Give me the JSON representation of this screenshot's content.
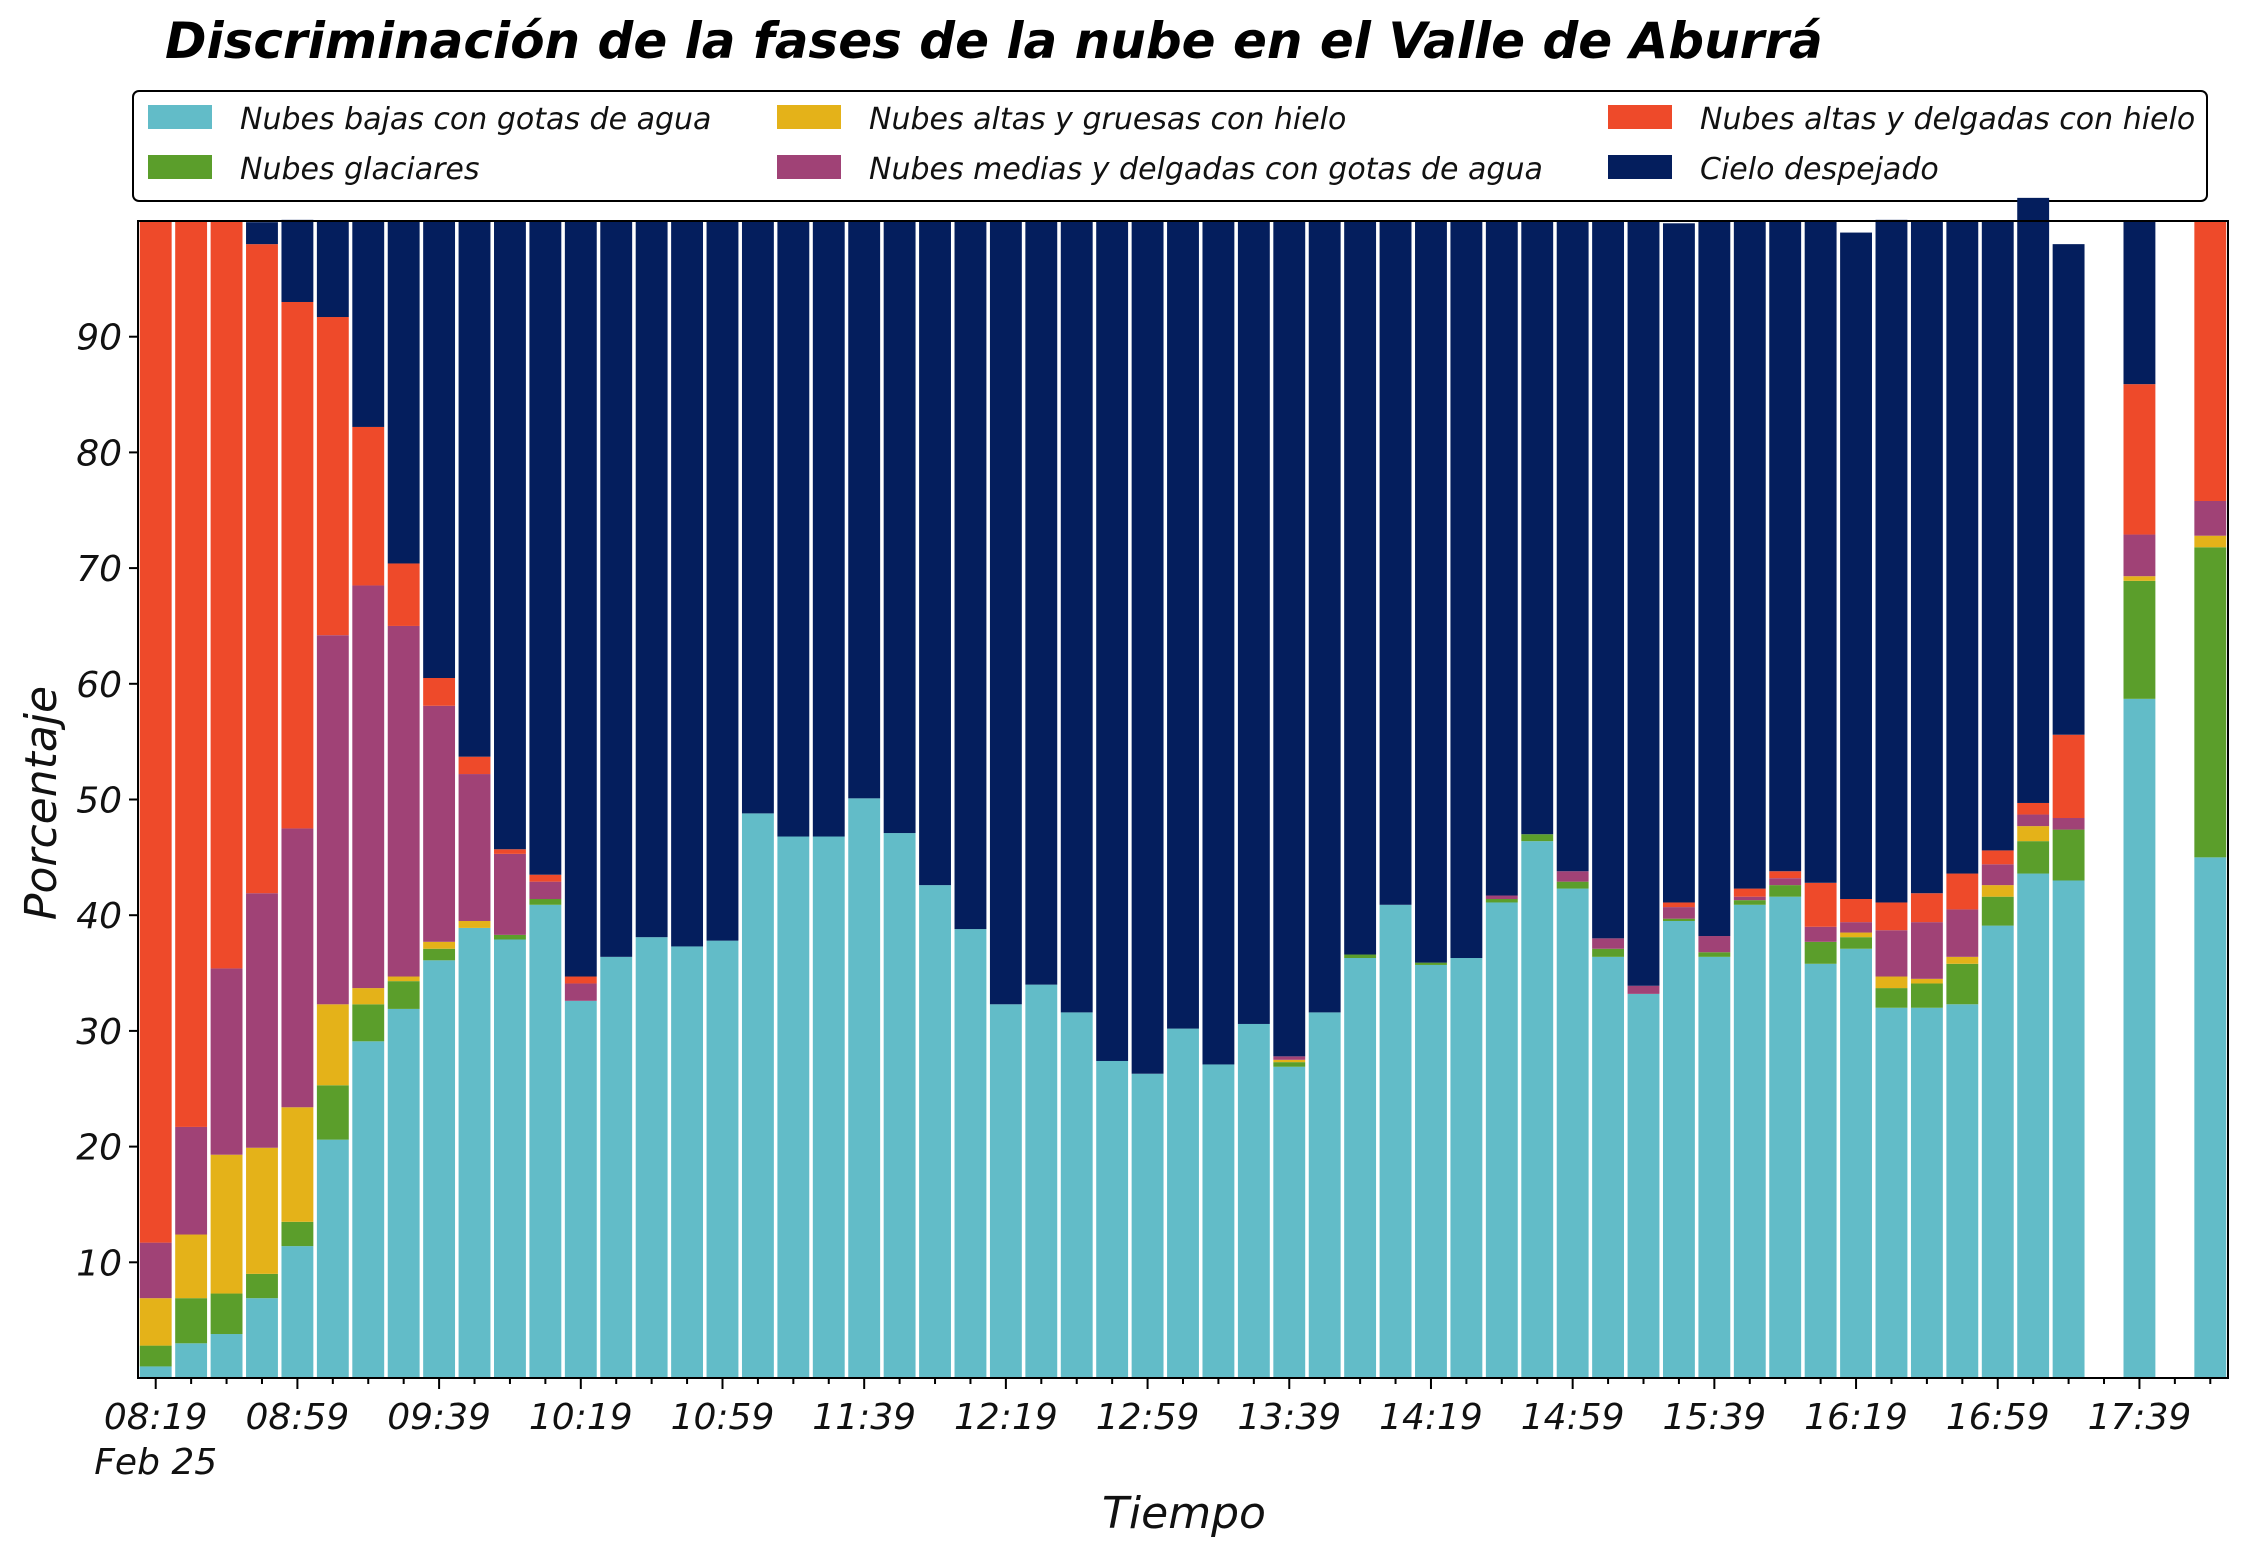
{
  "chart_data": {
    "type": "bar",
    "stacked": true,
    "title": "Discriminación de la fases de la nube en el Valle de Aburrá",
    "xlabel": "Tiempo",
    "ylabel": "Porcentaje",
    "ylim": [
      0,
      100
    ],
    "yticks": [
      10,
      20,
      30,
      40,
      50,
      60,
      70,
      80,
      90
    ],
    "xtick_labels": [
      "08:19",
      "08:59",
      "09:39",
      "10:19",
      "10:59",
      "11:39",
      "12:19",
      "12:59",
      "13:39",
      "14:19",
      "14:59",
      "15:39",
      "16:19",
      "16:59",
      "17:39"
    ],
    "xtick_date": "Feb 25",
    "x_start": "08:19",
    "interval_minutes": 10,
    "legend_position": "top",
    "grid": false,
    "series": [
      {
        "name": "Nubes bajas con gotas de agua",
        "color": "#62bcc8",
        "values": [
          1,
          3,
          3.8,
          6.9,
          11.4,
          20.6,
          29.1,
          31.9,
          36.1,
          38.9,
          37.9,
          40.9,
          32.6,
          36.4,
          38.1,
          37.3,
          37.8,
          48.8,
          46.8,
          46.8,
          50.1,
          47.1,
          42.6,
          38.8,
          32.3,
          34,
          31.6,
          27.4,
          26.3,
          30.2,
          27.1,
          30.6,
          26.9,
          31.6,
          36.3,
          40.9,
          35.7,
          36.3,
          41.1,
          46.4,
          42.3,
          36.4,
          33.2,
          39.5,
          36.4,
          40.9,
          41.6,
          35.8,
          37.1,
          32,
          32,
          32.3,
          39.1,
          43.6,
          43,
          null,
          58.7,
          null,
          45
        ]
      },
      {
        "name": "Nubes glaciares",
        "color": "#5b9e2b",
        "values": [
          1.8,
          3.9,
          3.5,
          2.1,
          2.1,
          4.7,
          3.2,
          2.4,
          1,
          0,
          0.4,
          0.5,
          0,
          0,
          0,
          0,
          0,
          0,
          0,
          0,
          0,
          0,
          0,
          0,
          0,
          0,
          0,
          0,
          0,
          0,
          0,
          0,
          0.4,
          0,
          0.3,
          0,
          0.2,
          0,
          0.3,
          0.6,
          0.6,
          0.7,
          0,
          0.2,
          0.4,
          0.4,
          1,
          1.9,
          1,
          1.7,
          2.1,
          3.5,
          2.5,
          2.8,
          4.4,
          null,
          10.2,
          null,
          26.8
        ]
      },
      {
        "name": "Nubes altas y gruesas con hielo",
        "color": "#e4b219",
        "values": [
          4.1,
          5.5,
          12,
          10.9,
          9.9,
          7,
          1.4,
          0.4,
          0.6,
          0.6,
          0,
          0,
          0,
          0,
          0,
          0,
          0,
          0,
          0,
          0,
          0,
          0,
          0,
          0,
          0,
          0,
          0,
          0,
          0,
          0,
          0,
          0,
          0.2,
          0,
          0,
          0,
          0,
          0,
          0,
          0,
          0,
          0,
          0,
          0,
          0,
          0,
          0,
          0,
          0.4,
          1,
          0.4,
          0.6,
          1,
          1.3,
          0,
          null,
          0.4,
          null,
          1
        ]
      },
      {
        "name": "Nubes medias y delgadas con gotas de agua",
        "color": "#a04276",
        "values": [
          4.8,
          9.3,
          16.1,
          22,
          24.1,
          31.9,
          34.8,
          30.3,
          20.4,
          12.7,
          7,
          1.5,
          1.5,
          0,
          0,
          0,
          0,
          0,
          0,
          0,
          0,
          0,
          0,
          0,
          0,
          0,
          0,
          0,
          0,
          0,
          0,
          0,
          0.3,
          0,
          0,
          0,
          0,
          0,
          0.3,
          0,
          0.9,
          0.9,
          0.7,
          1,
          1.4,
          0.3,
          0.6,
          1.3,
          0.9,
          4,
          4.9,
          4.1,
          1.8,
          1,
          1,
          null,
          3.6,
          null,
          3
        ]
      },
      {
        "name": "Nubes altas y delgadas con hielo",
        "color": "#ee4a2a",
        "values": [
          88.3,
          78.3,
          64.6,
          56.1,
          45.5,
          27.5,
          13.7,
          5.4,
          2.4,
          1.5,
          0.4,
          0.6,
          0.6,
          0,
          0,
          0,
          0,
          0,
          0,
          0,
          0,
          0,
          0,
          0,
          0,
          0,
          0,
          0,
          0,
          0,
          0,
          0,
          0,
          0,
          0,
          0,
          0,
          0,
          0,
          0,
          0,
          0,
          0,
          0.4,
          0,
          0.7,
          0.6,
          3.8,
          2,
          2.4,
          2.5,
          3.1,
          1.2,
          1,
          7.2,
          null,
          13,
          null,
          24.2
        ]
      },
      {
        "name": "Cielo despejado",
        "color": "#041e5d",
        "values": [
          0,
          0,
          0,
          1.9,
          7.1,
          8.3,
          17.8,
          29.6,
          39.5,
          46.3,
          54.3,
          56.5,
          65.3,
          63.6,
          61.9,
          62.7,
          62.2,
          51.2,
          53.2,
          53.2,
          49.9,
          52.9,
          57.4,
          61.2,
          67.7,
          66,
          68.4,
          72.6,
          73.7,
          69.8,
          72.9,
          69.4,
          72.2,
          68.4,
          63.4,
          59.1,
          64.1,
          63.7,
          58.3,
          53,
          56.2,
          62,
          66.1,
          58.7,
          61.8,
          57.7,
          56.2,
          57.2,
          57.6,
          59,
          58.1,
          56.4,
          54.4,
          52.3,
          42.4,
          null,
          14.1,
          null,
          0
        ]
      }
    ]
  }
}
